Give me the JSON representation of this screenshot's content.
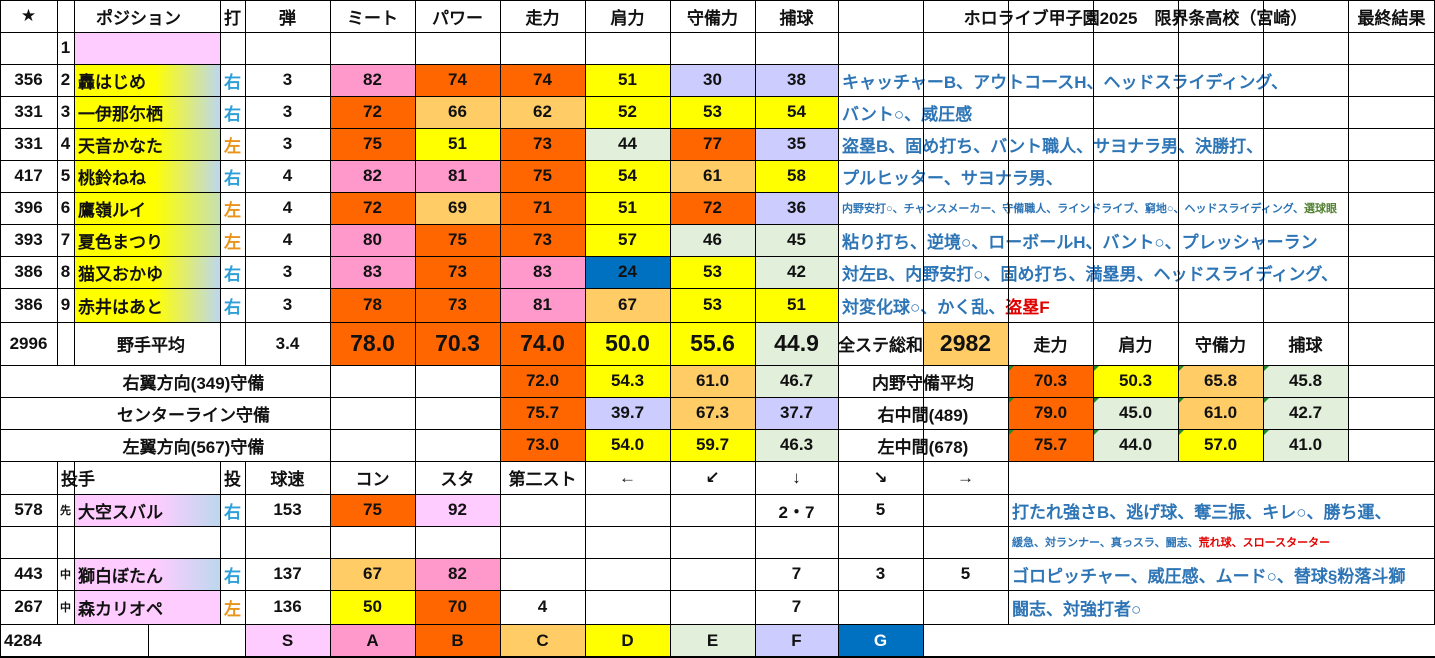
{
  "palette": {
    "S": "#ffccff",
    "A": "#ff99cc",
    "B": "#ff6600",
    "C": "#ffcc66",
    "D": "#ffff00",
    "E": "#e2efda",
    "F": "#ccccff",
    "G": "#0070c0",
    "hand_r_bg": "#bdd7ee",
    "hand_l_bg": "#c6e0b4",
    "grand_total_bg": "#ffcc66"
  },
  "title": {
    "school": "ホロライブ甲子園2025　限界条高校（宮崎）",
    "result": "最終結果",
    "star": "★"
  },
  "header": {
    "position": "ポジション",
    "bat": "打",
    "ammo": "弾",
    "meet": "ミート",
    "power": "パワー",
    "run": "走力",
    "arm": "肩力",
    "def": "守備力",
    "catch": "捕球"
  },
  "batters": [
    {
      "total": "",
      "no": "1",
      "name": "",
      "hand": "",
      "ammo": "",
      "meet": "",
      "power": "",
      "run": "",
      "arm": "",
      "def": "",
      "catch": "",
      "skills": ""
    },
    {
      "total": "356",
      "no": "2",
      "name": "轟はじめ",
      "hand": "右",
      "ammo": "3",
      "meet": "82",
      "power": "74",
      "run": "74",
      "arm": "51",
      "def": "30",
      "catch": "38",
      "skills": "キャッチャーB、アウトコースH、ヘッドスライディング、"
    },
    {
      "total": "331",
      "no": "3",
      "name": "一伊那尓栖",
      "hand": "右",
      "ammo": "3",
      "meet": "72",
      "power": "66",
      "run": "62",
      "arm": "52",
      "def": "53",
      "catch": "54",
      "skills": "バント○、威圧感"
    },
    {
      "total": "331",
      "no": "4",
      "name": "天音かなた",
      "hand": "左",
      "ammo": "3",
      "meet": "75",
      "power": "51",
      "run": "73",
      "arm": "44",
      "def": "77",
      "catch": "35",
      "skills": "盗塁B、固め打ち、バント職人、サヨナラ男、決勝打、"
    },
    {
      "total": "417",
      "no": "5",
      "name": "桃鈴ねね",
      "hand": "右",
      "ammo": "4",
      "meet": "82",
      "power": "81",
      "run": "75",
      "arm": "54",
      "def": "61",
      "catch": "58",
      "skills": "プルヒッター、サヨナラ男、"
    },
    {
      "total": "396",
      "no": "6",
      "name": "鷹嶺ルイ",
      "hand": "左",
      "ammo": "4",
      "meet": "72",
      "power": "69",
      "run": "71",
      "arm": "51",
      "def": "72",
      "catch": "36",
      "skills": "内野安打○、チャンスメーカー、守備職人、ラインドライブ、窮地○、ヘッドスライディング、",
      "skills_extra": "選球眼"
    },
    {
      "total": "393",
      "no": "7",
      "name": "夏色まつり",
      "hand": "左",
      "ammo": "4",
      "meet": "80",
      "power": "75",
      "run": "73",
      "arm": "57",
      "def": "46",
      "catch": "45",
      "skills": "粘り打ち、逆境○、ローボールH、バント○、プレッシャーラン"
    },
    {
      "total": "386",
      "no": "8",
      "name": "猫又おかゆ",
      "hand": "右",
      "ammo": "3",
      "meet": "83",
      "power": "73",
      "run": "83",
      "arm": "24",
      "def": "53",
      "catch": "42",
      "skills": "対左B、内野安打○、固め打ち、満塁男、ヘッドスライディング、"
    },
    {
      "total": "386",
      "no": "9",
      "name": "赤井はあと",
      "hand": "右",
      "ammo": "3",
      "meet": "78",
      "power": "73",
      "run": "81",
      "arm": "67",
      "def": "53",
      "catch": "51",
      "skills": "対変化球○、かく乱、",
      "skills_extra": "盗塁F"
    }
  ],
  "fielder_avg": {
    "total": "2996",
    "label": "野手平均",
    "ammo": "3.4",
    "meet": "78.0",
    "power": "70.3",
    "run": "74.0",
    "arm": "50.0",
    "def": "55.6",
    "catch": "44.9",
    "sum_label": "全ステ総和",
    "sum_value": "2982"
  },
  "right_header": {
    "run": "走力",
    "arm": "肩力",
    "def": "守備力",
    "catch": "捕球"
  },
  "defense_rows": [
    {
      "label": "右翼方向(349)守備",
      "run": "72.0",
      "arm": "54.3",
      "def": "61.0",
      "catch": "46.7",
      "r_label": "内野守備平均",
      "r_run": "70.3",
      "r_arm": "50.3",
      "r_def": "65.8",
      "r_catch": "45.8"
    },
    {
      "label": "センターライン守備",
      "run": "75.7",
      "arm": "39.7",
      "def": "67.3",
      "catch": "37.7",
      "r_label": "右中間(489)",
      "r_run": "79.0",
      "r_arm": "45.0",
      "r_def": "61.0",
      "r_catch": "42.7"
    },
    {
      "label": "左翼方向(567)守備",
      "run": "73.0",
      "arm": "54.0",
      "def": "59.7",
      "catch": "46.3",
      "r_label": "左中間(678)",
      "r_run": "75.7",
      "r_arm": "44.0",
      "r_def": "57.0",
      "r_catch": "41.0"
    }
  ],
  "pitch_header": {
    "pitcher": "投手",
    "throw": "投",
    "speed": "球速",
    "con": "コン",
    "sta": "スタ",
    "second": "第二スト",
    "left": "←",
    "dl": "↙",
    "down": "↓",
    "dr": "↘",
    "right": "→"
  },
  "pitchers": [
    {
      "total": "578",
      "role": "先",
      "name": "大空スバル",
      "hand": "右",
      "speed": "153",
      "con": "75",
      "sta": "92",
      "second": "",
      "left": "",
      "dl": "",
      "down": "2・7",
      "dr": "5",
      "right": "",
      "skills": "打たれ強さB、逃げ球、奪三振、キレ○、勝ち運、",
      "skills2": "緩急、対ランナー、真っスラ、闘志、",
      "skills2_red": "荒れ球、スロースターター"
    },
    {
      "total": "443",
      "role": "中",
      "name": "獅白ぼたん",
      "hand": "右",
      "speed": "137",
      "con": "67",
      "sta": "82",
      "second": "",
      "left": "",
      "dl": "",
      "down": "7",
      "dr": "3",
      "right": "5",
      "skills": "ゴロピッチャー、威圧感、ムード○、替球§粉落斗獅"
    },
    {
      "total": "267",
      "role": "中",
      "name": "森カリオペ",
      "hand": "左",
      "speed": "136",
      "con": "50",
      "sta": "70",
      "second": "4",
      "left": "",
      "dl": "",
      "down": "7",
      "dr": "",
      "right": "",
      "skills": "闘志、対強打者○"
    }
  ],
  "legend": {
    "total": "4284",
    "S": "S",
    "A": "A",
    "B": "B",
    "C": "C",
    "D": "D",
    "E": "E",
    "F": "F",
    "G": "G"
  }
}
